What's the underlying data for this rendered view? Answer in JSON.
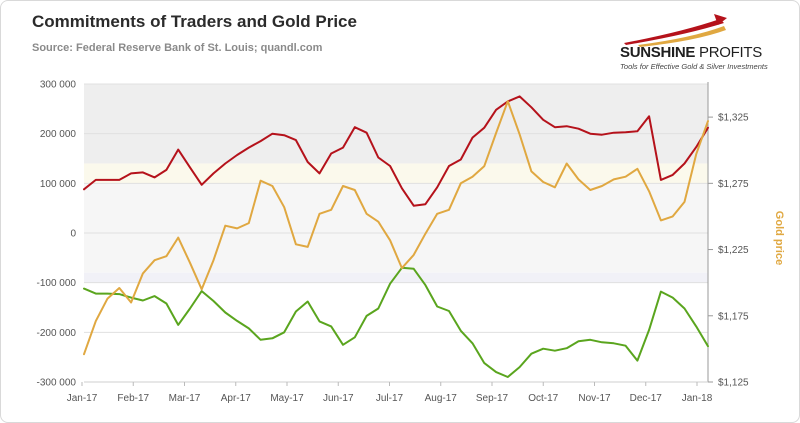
{
  "header": {
    "title": "Commitments of Traders and Gold Price",
    "subtitle": "Source: Federal Reserve Bank of St. Louis; quandl.com"
  },
  "logo": {
    "name_bold": "SUNSHINE",
    "name_light": "PROFITS",
    "tagline": "Tools for Effective Gold & Silver Investments",
    "colors": {
      "red": "#b5121b",
      "gold": "#e0a841"
    }
  },
  "chart_data": {
    "type": "line",
    "title": "Commitments of Traders and Gold Price",
    "subtitle": "Source: Federal Reserve Bank of St. Louis; quandl.com",
    "xlabel": "",
    "ylabel": "",
    "y2label": "Gold price",
    "x_ticks": [
      "Jan-17",
      "Feb-17",
      "Mar-17",
      "Apr-17",
      "May-17",
      "Jun-17",
      "Jul-17",
      "Aug-17",
      "Sep-17",
      "Oct-17",
      "Nov-17",
      "Dec-17",
      "Jan-18"
    ],
    "ylim": [
      -300000,
      300000
    ],
    "y_ticks": [
      "300 000",
      "200 000",
      "100 000",
      "0",
      "-100 000",
      "-200 000",
      "-300 000"
    ],
    "y2lim": [
      1125,
      1350
    ],
    "y2_ticks": [
      "$1,325",
      "$1,275",
      "$1,225",
      "$1,175",
      "$1,125"
    ],
    "grid": "horizontal",
    "legend": "none",
    "bands": [
      {
        "from": 140000,
        "to": 300000,
        "color": "#eeeeee"
      },
      {
        "from": 100000,
        "to": 140000,
        "color": "#fbf9ec"
      },
      {
        "from": -80000,
        "to": 100000,
        "color": "#f6f6f6"
      },
      {
        "from": -100000,
        "to": -80000,
        "color": "#f1f1f7"
      }
    ],
    "series": [
      {
        "color": "#b5121b",
        "axis": "left",
        "values": [
          88000,
          107000,
          107000,
          107000,
          120000,
          122000,
          112000,
          127000,
          168000,
          132000,
          97000,
          120000,
          140000,
          157000,
          172000,
          185000,
          200000,
          197000,
          187000,
          143000,
          120000,
          160000,
          172000,
          213000,
          202000,
          152000,
          135000,
          90000,
          55000,
          58000,
          92000,
          135000,
          148000,
          192000,
          212000,
          248000,
          265000,
          275000,
          253000,
          228000,
          213000,
          215000,
          210000,
          200000,
          198000,
          202000,
          203000,
          205000,
          235000,
          107000,
          117000,
          140000,
          173000,
          212000
        ]
      },
      {
        "color": "#5aa51e",
        "axis": "left",
        "values": [
          -112000,
          -122000,
          -122000,
          -123000,
          -130000,
          -136000,
          -127000,
          -142000,
          -185000,
          -152000,
          -117000,
          -137000,
          -160000,
          -177000,
          -192000,
          -215000,
          -212000,
          -200000,
          -158000,
          -138000,
          -178000,
          -188000,
          -225000,
          -210000,
          -167000,
          -152000,
          -102000,
          -70000,
          -72000,
          -105000,
          -148000,
          -157000,
          -197000,
          -222000,
          -262000,
          -280000,
          -290000,
          -270000,
          -243000,
          -233000,
          -237000,
          -232000,
          -218000,
          -215000,
          -220000,
          -222000,
          -227000,
          -257000,
          -195000,
          -118000,
          -130000,
          -152000,
          -188000,
          -228000
        ]
      },
      {
        "color": "#e0a841",
        "axis": "right",
        "values": [
          1146,
          1171,
          1188,
          1196,
          1185,
          1207,
          1217,
          1220,
          1234,
          1215,
          1195,
          1217,
          1243,
          1241,
          1245,
          1277,
          1273,
          1257,
          1229,
          1227,
          1252,
          1255,
          1273,
          1270,
          1252,
          1246,
          1232,
          1211,
          1221,
          1237,
          1252,
          1255,
          1275,
          1280,
          1288,
          1313,
          1337,
          1312,
          1284,
          1276,
          1272,
          1290,
          1278,
          1270,
          1273,
          1278,
          1280,
          1286,
          1269,
          1247,
          1250,
          1261,
          1297,
          1322
        ]
      }
    ]
  }
}
